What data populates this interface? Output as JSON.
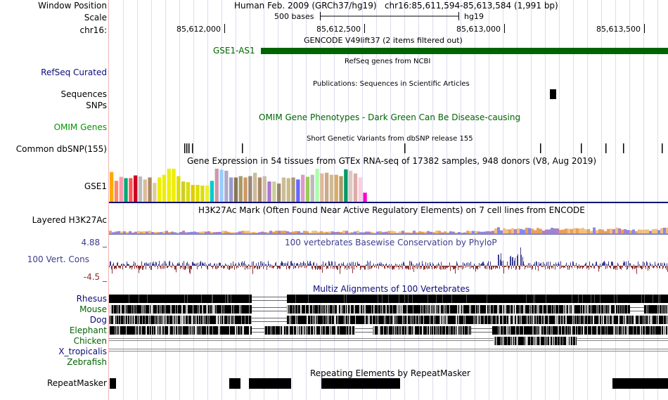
{
  "header": {
    "window_position_label": "Window Position",
    "window_position_value": "Human Feb. 2009 (GRCh37/hg19)   chr16:85,611,594-85,613,584 (1,991 bp)",
    "scale_label": "Scale",
    "scale_bar_text": "500 bases",
    "scale_assembly": "hg19",
    "chrom_label": "chr16:",
    "ruler_ticks": [
      "85,612,000",
      "85,612,500",
      "85,613,000",
      "85,613,500"
    ]
  },
  "tracks": {
    "gencode": {
      "title": "GENCODE V49lift37 (2 items filtered out)",
      "gene": "GSE1-AS1"
    },
    "refseq": {
      "label": "RefSeq Curated",
      "title": "RefSeq genes from NCBI"
    },
    "publications": {
      "title": "Publications: Sequences in Scientific Articles",
      "label": "Sequences"
    },
    "snps": {
      "label": "SNPs"
    },
    "omim": {
      "title": "OMIM Gene Phenotypes - Dark Green Can Be Disease-causing",
      "label": "OMIM Genes"
    },
    "dbsnp": {
      "title": "Short Genetic Variants from dbSNP release 155",
      "label": "Common dbSNP(155)"
    },
    "gtex": {
      "title": "Gene Expression in 54 tissues from GTEx RNA-seq of 17382 samples, 948 donors (V8, Aug 2019)",
      "label": "GSE1",
      "values": [
        0.88,
        0.62,
        0.74,
        0.7,
        0.7,
        0.78,
        0.75,
        0.66,
        0.72,
        0.56,
        0.72,
        0.8,
        0.98,
        0.98,
        0.76,
        0.6,
        0.58,
        0.5,
        0.5,
        0.48,
        0.48,
        0.62,
        0.98,
        0.95,
        0.92,
        0.72,
        0.72,
        0.76,
        0.72,
        0.76,
        0.86,
        0.72,
        0.76,
        0.6,
        0.6,
        0.54,
        0.72,
        0.7,
        0.72,
        0.66,
        0.8,
        0.74,
        0.8,
        0.98,
        0.84,
        0.86,
        0.8,
        0.8,
        0.76,
        0.96,
        0.92,
        0.84,
        0.72,
        0.27
      ],
      "colors": [
        "#ffaa00",
        "#ff8866",
        "#ff99aa",
        "#00aa77",
        "#ff5555",
        "#cc0022",
        "#bbbbbb",
        "#ddbb99",
        "#aa8866",
        "#ddcc99",
        "#eeee00",
        "#eeee00",
        "#eeee00",
        "#eeee00",
        "#dddd00",
        "#cccc33",
        "#dddd00",
        "#ddcc00",
        "#dddd00",
        "#dddd00",
        "#eeee33",
        "#00cccc",
        "#cc99aa",
        "#99ccff",
        "#aaaacc",
        "#9999cc",
        "#887755",
        "#aa9966",
        "#cc9966",
        "#998877",
        "#ccbb99",
        "#aa8866",
        "#ccbbaa",
        "#aa77cc",
        "#cccc99",
        "#998866",
        "#ccbb99",
        "#ccbb88",
        "#aa9977",
        "#6666ff",
        "#dd99cc",
        "#99cc55",
        "#bbbbbb",
        "#aaffaa",
        "#ddbb99",
        "#ccaa88",
        "#ccbb99",
        "#ddaa66",
        "#aa9966",
        "#009966",
        "#ddccbb",
        "#ddaaaa",
        "#ffccdd",
        "#ff00cc"
      ]
    },
    "h3k27ac": {
      "title": "H3K27Ac Mark (Often Found Near Active Regulatory Elements) on 7 cell lines from ENCODE",
      "label": "Layered H3K27Ac"
    },
    "conservation": {
      "title": "100 vertebrates Basewise Conservation by PhyloP",
      "label": "100 Vert. Cons",
      "max": "4.88 _",
      "min": "-4.5 _"
    },
    "multiz": {
      "title": "Multiz Alignments of 100 Vertebrates",
      "species": [
        "Rhesus",
        "Mouse",
        "Dog",
        "Elephant",
        "Chicken",
        "X_tropicalis",
        "Zebrafish"
      ]
    },
    "repeatmasker": {
      "title": "Repeating Elements by RepeatMasker",
      "label": "RepeatMasker"
    }
  },
  "colors": {
    "gencode_green": "#006400",
    "refseq_blue": "#0c0c78",
    "omim_green": "#009900",
    "phylop_blue": "#3c3c8c",
    "phylop_red": "#8c3030"
  }
}
